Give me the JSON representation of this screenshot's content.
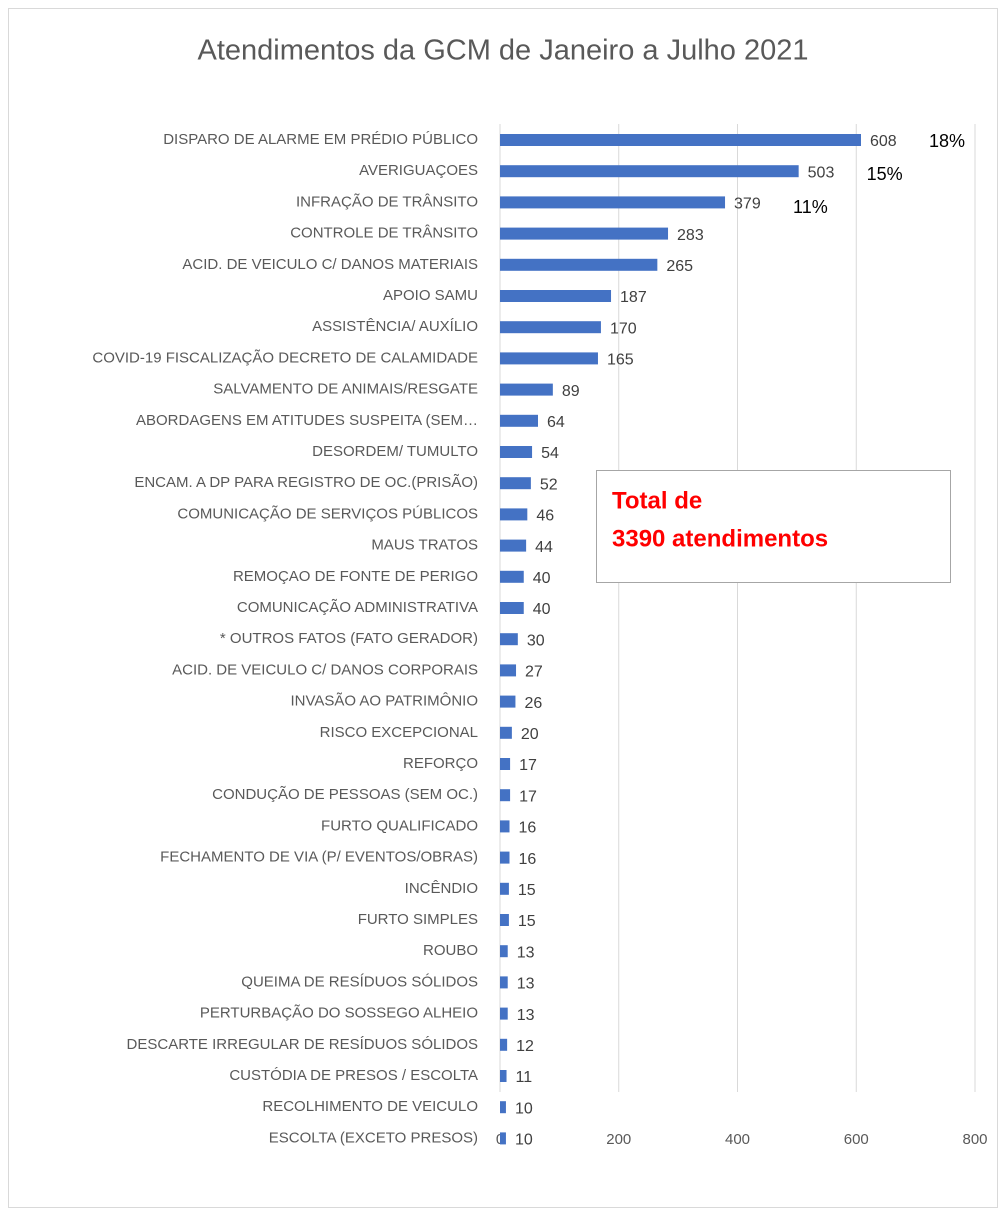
{
  "chart_data": {
    "type": "bar",
    "orientation": "horizontal",
    "title": "Atendimentos  da GCM de Janeiro a Julho 2021",
    "categories": [
      "DISPARO DE ALARME EM PRÉDIO PÚBLICO",
      "AVERIGUAÇOES",
      "INFRAÇÃO DE TRÂNSITO",
      "CONTROLE DE TRÂNSITO",
      "ACID. DE VEICULO C/ DANOS MATERIAIS",
      "APOIO SAMU",
      "ASSISTÊNCIA/ AUXÍLIO",
      "COVID-19 FISCALIZAÇÃO DECRETO DE CALAMIDADE",
      "SALVAMENTO DE ANIMAIS/RESGATE",
      "ABORDAGENS EM ATITUDES SUSPEITA (SEM…",
      "DESORDEM/ TUMULTO",
      "ENCAM. A DP PARA REGISTRO DE OC.(PRISÃO)",
      "COMUNICAÇÃO DE SERVIÇOS PÚBLICOS",
      "MAUS TRATOS",
      "REMOÇAO DE FONTE DE PERIGO",
      "COMUNICAÇÃO ADMINISTRATIVA",
      "* OUTROS FATOS (FATO GERADOR)",
      "ACID. DE VEICULO C/ DANOS CORPORAIS",
      "INVASÃO AO PATRIMÔNIO",
      "RISCO EXCEPCIONAL",
      "REFORÇO",
      "CONDUÇÃO DE PESSOAS (SEM OC.)",
      "FURTO QUALIFICADO",
      "FECHAMENTO DE VIA (P/ EVENTOS/OBRAS)",
      "INCÊNDIO",
      "FURTO SIMPLES",
      "ROUBO",
      "QUEIMA DE RESÍDUOS SÓLIDOS",
      "PERTURBAÇÃO DO SOSSEGO ALHEIO",
      "DESCARTE IRREGULAR DE RESÍDUOS SÓLIDOS",
      "CUSTÓDIA DE PRESOS / ESCOLTA",
      "RECOLHIMENTO DE VEICULO",
      "ESCOLTA (EXCETO PRESOS)"
    ],
    "values": [
      608,
      503,
      379,
      283,
      265,
      187,
      170,
      165,
      89,
      64,
      54,
      52,
      46,
      44,
      40,
      40,
      30,
      27,
      26,
      20,
      17,
      17,
      16,
      16,
      15,
      15,
      13,
      13,
      13,
      12,
      11,
      10,
      10
    ],
    "color": "#4472c4",
    "xlim": [
      0,
      800
    ],
    "xticks": [
      0,
      200,
      400,
      600,
      800
    ],
    "grid": true,
    "annotations": [
      "18%",
      "15%",
      "11%"
    ],
    "note": [
      "Total de",
      "3390 atendimentos"
    ]
  }
}
